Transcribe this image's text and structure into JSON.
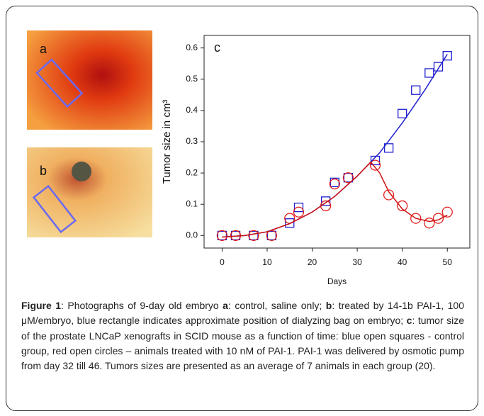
{
  "panels": {
    "a": "a",
    "b": "b"
  },
  "chart_data": {
    "type": "scatter-fit",
    "label": "c",
    "xlabel": "Days",
    "ylabel": "Tumor size in cm³",
    "xlim": [
      -4,
      55
    ],
    "ylim": [
      -0.04,
      0.64
    ],
    "xticks": [
      0,
      10,
      20,
      30,
      40,
      50
    ],
    "yticks": [
      {
        "value": 0,
        "label": "0.0"
      },
      0.1,
      0.2,
      0.3,
      0.4,
      0.5,
      0.6
    ],
    "series": [
      {
        "color": "#1f1fd0",
        "marker": "square",
        "x": [
          0,
          3,
          7,
          11,
          15,
          17,
          23,
          25,
          28,
          34,
          37,
          40,
          43,
          46,
          48,
          50
        ],
        "values": [
          0,
          0,
          0,
          0,
          0.04,
          0.09,
          0.11,
          0.17,
          0.185,
          0.24,
          0.28,
          0.39,
          0.465,
          0.52,
          0.54,
          0.575
        ]
      },
      {
        "color": "#e02020",
        "marker": "circle",
        "x": [
          0,
          3,
          7,
          11,
          15,
          17,
          23,
          25,
          28,
          34,
          37,
          40,
          43,
          46,
          48,
          50
        ],
        "values": [
          0,
          0,
          0,
          0,
          0.055,
          0.075,
          0.095,
          0.165,
          0.185,
          0.225,
          0.13,
          0.095,
          0.055,
          0.04,
          0.055,
          0.075
        ]
      },
      {
        "color": "#1f1fd0",
        "marker": "none",
        "x": [
          0,
          5,
          10,
          15,
          20,
          25,
          30,
          35,
          40,
          45,
          50
        ],
        "values": [
          -0.005,
          0,
          0.012,
          0.038,
          0.075,
          0.125,
          0.19,
          0.265,
          0.36,
          0.465,
          0.58
        ]
      },
      {
        "color": "#d01010",
        "marker": "none",
        "x": [
          0,
          5,
          10,
          15,
          20,
          25,
          30,
          33,
          35,
          37,
          40,
          43,
          46,
          48,
          50
        ],
        "values": [
          -0.005,
          0,
          0.012,
          0.038,
          0.075,
          0.125,
          0.19,
          0.235,
          0.2,
          0.14,
          0.085,
          0.055,
          0.045,
          0.05,
          0.065
        ]
      }
    ]
  },
  "caption": [
    {
      "text": "Figure 1",
      "bold": true
    },
    {
      "text": ": Photographs of 9-day old embryo ",
      "bold": false
    },
    {
      "text": "a",
      "bold": true
    },
    {
      "text": ": control, saline only; ",
      "bold": false
    },
    {
      "text": "b",
      "bold": true
    },
    {
      "text": ": treated by 14-1b PAI-1, 100 μM/embryo, blue rectangle indicates approximate position of dialyzing bag on embryo; ",
      "bold": false
    },
    {
      "text": "c",
      "bold": true
    },
    {
      "text": ": tumor size of the prostate LNCaP xenografts in SCID mouse as a function of time: blue open squares - control group, red open circles – animals treated with 10 nM of PAI-1. PAI-1 was delivered by osmotic pump from day 32 till 46. Tumors sizes are presented as an average of 7 animals in each group (20).",
      "bold": false
    }
  ]
}
